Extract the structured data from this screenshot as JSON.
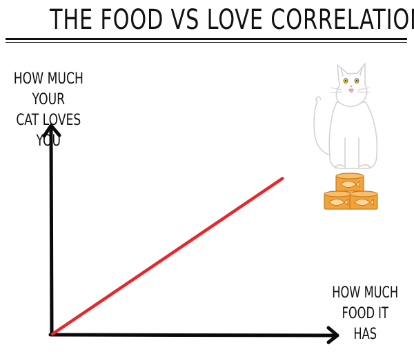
{
  "chart_data": {
    "type": "line",
    "title": "THE FOOD VS LOVE CORRELATION",
    "xlabel": "HOW MUCH FOOD IT HAS",
    "ylabel": "HOW MUCH YOUR CAT LOVES YOU",
    "xlabel_lines": [
      "HOW MUCH",
      "FOOD IT",
      "HAS"
    ],
    "ylabel_lines": [
      "HOW MUCH YOUR",
      "CAT LOVES YOU"
    ],
    "x": [
      0,
      1
    ],
    "series": [
      {
        "values": [
          0,
          0.92
        ]
      }
    ],
    "xlim": [
      0,
      1.2
    ],
    "ylim": [
      0,
      1.2
    ],
    "grid": false,
    "legend": "none",
    "colors": {
      "line": "#e8262b",
      "axes": "#0a0a0a",
      "cans": "#f2a23a"
    },
    "illustration": {
      "icon": "cat-with-food-cans-icon"
    }
  }
}
